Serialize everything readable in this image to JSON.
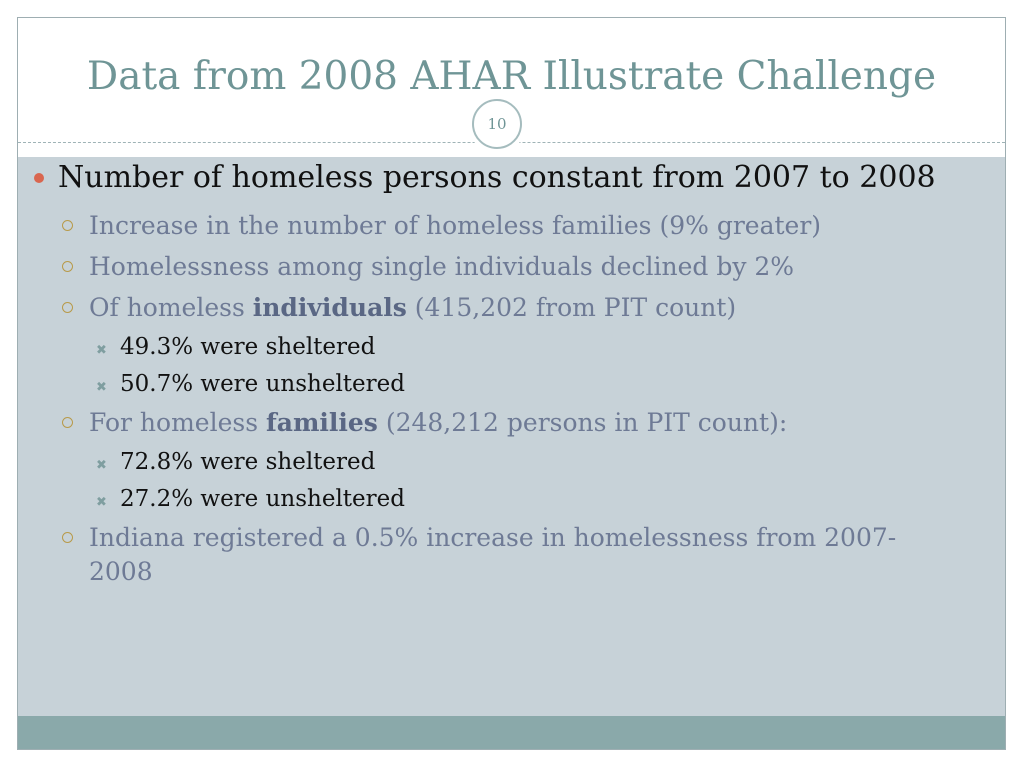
{
  "slide": {
    "title": "Data from 2008 AHAR Illustrate Challenge",
    "number": "10",
    "accent_color": "#6f9596",
    "content_bg": "#c7d2d8",
    "bottom_bar_color": "#8aa9aa"
  },
  "body": {
    "main_bullet": "Number of homeless persons constant from 2007 to 2008",
    "sub1": "Increase in the number of homeless families (9% greater)",
    "sub2": "Homelessness among single individuals declined by 2%",
    "sub3_pre": "Of homeless ",
    "sub3_bold": "individuals",
    "sub3_post": " (415,202 from PIT count)",
    "sub3_items": [
      "49.3% were sheltered",
      "50.7% were unsheltered"
    ],
    "sub4_pre": "For homeless ",
    "sub4_bold": "families",
    "sub4_post": " (248,212 persons in PIT count):",
    "sub4_items": [
      "72.8% were sheltered",
      "27.2% were unsheltered"
    ],
    "sub5": "Indiana registered a 0.5% increase in homelessness from 2007-2008"
  }
}
